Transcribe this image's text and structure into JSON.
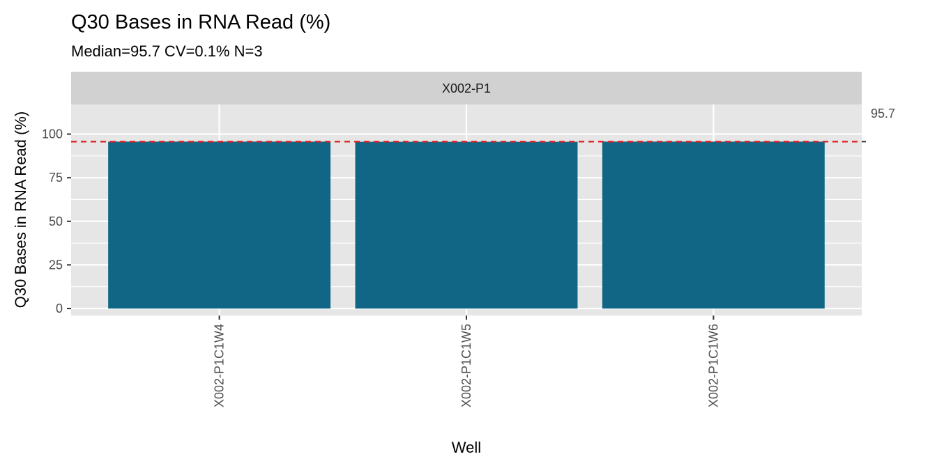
{
  "chart_data": {
    "type": "bar",
    "title": "Q30 Bases in RNA Read (%)",
    "subtitle": "Median=95.7    CV=0.1%    N=3",
    "facet": "X002-P1",
    "xlabel": "Well",
    "ylabel": "Q30 Bases in RNA Read (%)",
    "categories": [
      "X002-P1C1W4",
      "X002-P1C1W5",
      "X002-P1C1W6"
    ],
    "values": [
      95.7,
      95.6,
      95.7
    ],
    "ylim": [
      -4,
      117
    ],
    "yticks": [
      0,
      25,
      50,
      75,
      100
    ],
    "ytick_labels": [
      "0",
      "25",
      "50",
      "75",
      "100"
    ],
    "reference_line": {
      "value": 95.7,
      "label": "95.7",
      "style": "dashed"
    },
    "grid": true,
    "legend": "none"
  },
  "colors": {
    "bar": "#106684",
    "panel_background": "#e6e6e6",
    "gridline": "#ffffff",
    "strip_background": "#d1d1d1",
    "reference_line": "#e31a1c",
    "tick": "#333333"
  }
}
